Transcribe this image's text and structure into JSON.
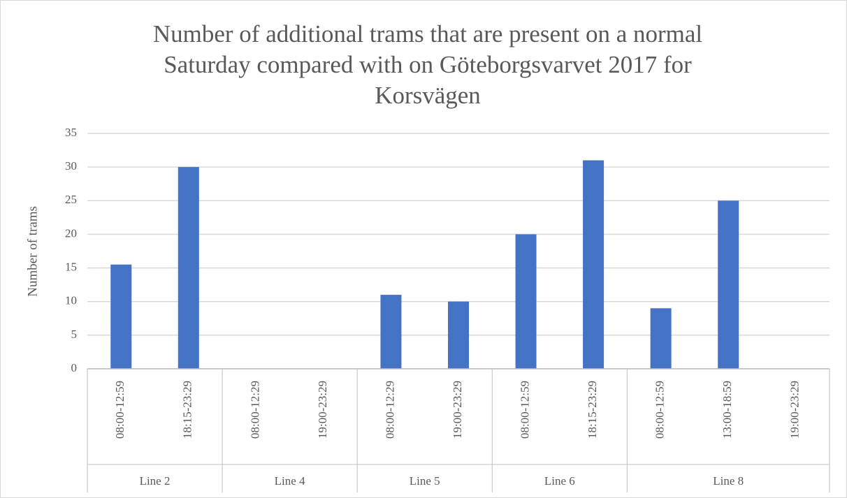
{
  "chart_data": {
    "type": "bar",
    "title": [
      "Number of additional trams that are present on a normal",
      "Saturday compared with on Göteborgsvarvet 2017 for",
      "Korsvägen"
    ],
    "ylabel": "Number of trams",
    "color": "#4472c4",
    "grid": true,
    "ylim": [
      0,
      35
    ],
    "yticks": [
      0,
      5,
      10,
      15,
      20,
      25,
      30,
      35
    ],
    "groups": [
      {
        "name": "Line 2",
        "categories": [
          "08:00-12:59",
          "18:15-23:29"
        ],
        "values": [
          15.5,
          30
        ]
      },
      {
        "name": "Line 4",
        "categories": [
          "08:00-12:29",
          "19:00-23:29"
        ],
        "values": [
          0,
          0
        ]
      },
      {
        "name": "Line 5",
        "categories": [
          "08:00-12:29",
          "19:00-23:29"
        ],
        "values": [
          11,
          10
        ]
      },
      {
        "name": "Line 6",
        "categories": [
          "08:00-12:59",
          "18:15-23:29"
        ],
        "values": [
          20,
          31
        ]
      },
      {
        "name": "Line 8",
        "categories": [
          "08:00-12:59",
          "13:00-18:59",
          "19:00-23:29"
        ],
        "values": [
          9,
          25,
          0
        ]
      }
    ]
  }
}
